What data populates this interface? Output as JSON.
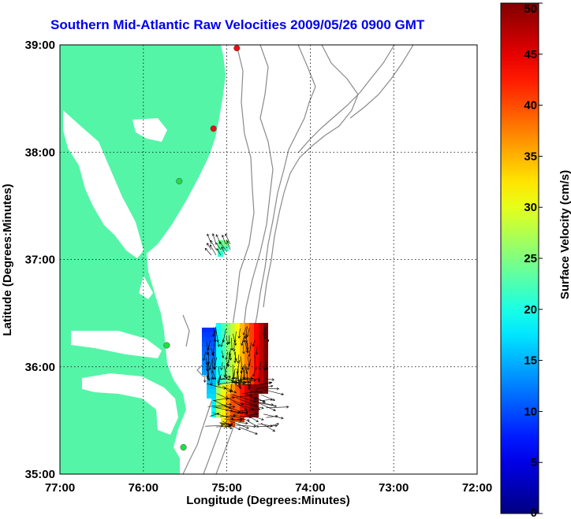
{
  "chart_data": {
    "type": "map",
    "title": "Southern Mid-Atlantic Raw Velocities 2009/05/26 0900 GMT",
    "xlabel": "Longitude (Degrees:Minutes)",
    "ylabel": "Latitude (Degrees:Minutes)",
    "x_ticks": [
      "77:00",
      "76:00",
      "75:00",
      "74:00",
      "73:00",
      "72:00"
    ],
    "y_ticks": [
      "39:00",
      "38:00",
      "37:00",
      "36:00",
      "35:00"
    ],
    "xlim": [
      -77,
      -72
    ],
    "ylim": [
      35,
      39
    ],
    "grid": true,
    "colorbar": {
      "label": "Surface Velocity (cm/s)",
      "range": [
        0,
        50
      ],
      "ticks": [
        "0",
        "5",
        "10",
        "15",
        "20",
        "25",
        "30",
        "35",
        "40",
        "45",
        "50"
      ],
      "colormap": "jet"
    },
    "land_color": "#55f5a8",
    "arrow_color": "#000000",
    "contour_color": "#8a8a8a",
    "stations": [
      {
        "lon": -74.88,
        "lat": 38.97,
        "color": "#e81010"
      },
      {
        "lon": -75.16,
        "lat": 38.22,
        "color": "#e81010"
      },
      {
        "lon": -75.57,
        "lat": 37.73,
        "color": "#22dd44"
      },
      {
        "lon": -75.72,
        "lat": 36.2,
        "color": "#22dd44"
      },
      {
        "lon": -75.52,
        "lat": 35.25,
        "color": "#22dd44"
      }
    ]
  }
}
